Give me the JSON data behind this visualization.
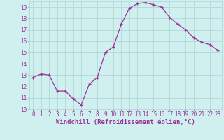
{
  "x": [
    0,
    1,
    2,
    3,
    4,
    5,
    6,
    7,
    8,
    9,
    10,
    11,
    12,
    13,
    14,
    15,
    16,
    17,
    18,
    19,
    20,
    21,
    22,
    23
  ],
  "y": [
    12.8,
    13.1,
    13.0,
    11.6,
    11.6,
    10.9,
    10.4,
    12.2,
    12.8,
    15.0,
    15.5,
    17.5,
    18.9,
    19.3,
    19.4,
    19.2,
    19.0,
    18.1,
    17.5,
    17.0,
    16.3,
    15.9,
    15.7,
    15.2
  ],
  "line_color": "#993399",
  "background_color": "#d0f0f0",
  "grid_color": "#b0d8d8",
  "xlabel": "Windchill (Refroidissement éolien,°C)",
  "xlabel_fontsize": 6.5,
  "tick_fontsize": 5.5,
  "ylim": [
    10,
    19.5
  ],
  "xlim": [
    -0.5,
    23.5
  ],
  "yticks": [
    10,
    11,
    12,
    13,
    14,
    15,
    16,
    17,
    18,
    19
  ],
  "xticks": [
    0,
    1,
    2,
    3,
    4,
    5,
    6,
    7,
    8,
    9,
    10,
    11,
    12,
    13,
    14,
    15,
    16,
    17,
    18,
    19,
    20,
    21,
    22,
    23
  ]
}
